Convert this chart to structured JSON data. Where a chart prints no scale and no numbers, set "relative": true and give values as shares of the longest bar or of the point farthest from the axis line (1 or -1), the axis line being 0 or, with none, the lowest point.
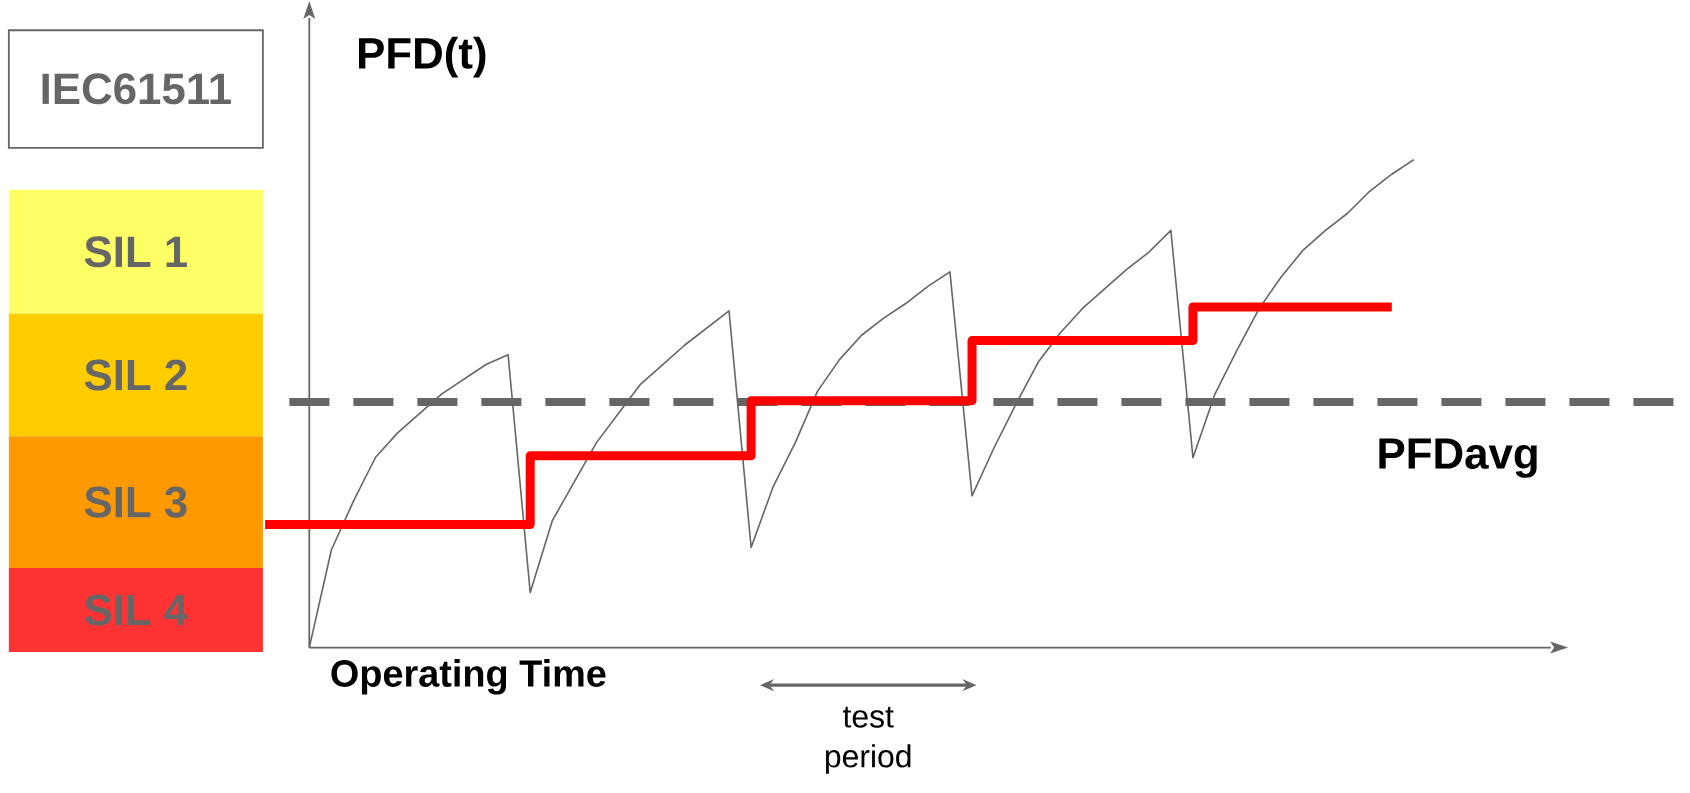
{
  "chart_data": {
    "type": "line",
    "relative": true,
    "ylabel": "PFD(t)",
    "xlabel": "Operating Time",
    "annotations": [
      "IEC61511",
      "SIL 1",
      "SIL 2",
      "SIL 3",
      "SIL 4",
      "test period"
    ],
    "categories": [
      null,
      null,
      null,
      null,
      null,
      null,
      null,
      null,
      null,
      null,
      null,
      null,
      null,
      null,
      null,
      null,
      null,
      null,
      null,
      null,
      null,
      null,
      null,
      null,
      null,
      null,
      null,
      null,
      null,
      null,
      null,
      null,
      null,
      null,
      null,
      null,
      null,
      null,
      null,
      null,
      null,
      null,
      null,
      null,
      null,
      null,
      null,
      null,
      null,
      null,
      null,
      null,
      null
    ],
    "series": [
      {
        "color": "#666666",
        "values": [
          null,
          null,
          0,
          0.2,
          0.3,
          0.39,
          0.44,
          0.48,
          0.52,
          0.55,
          0.58,
          0.6,
          0.113,
          0.26,
          0.34,
          0.42,
          0.48,
          0.54,
          0.58,
          0.62,
          0.655,
          0.69,
          0.205,
          0.33,
          0.42,
          0.525,
          0.59,
          0.64,
          0.675,
          0.705,
          0.74,
          0.77,
          0.311,
          0.41,
          0.5,
          0.585,
          0.645,
          0.695,
          0.735,
          0.775,
          0.81,
          0.855,
          0.389,
          0.52,
          0.61,
          0.695,
          0.76,
          0.815,
          0.855,
          0.89,
          0.935,
          0.97,
          1.0
        ]
      },
      {
        "type": "step",
        "color": "#ff0000",
        "values": [
          0.252,
          0.252,
          0.252,
          0.252,
          0.252,
          0.252,
          0.252,
          0.252,
          0.252,
          0.252,
          0.252,
          0.252,
          0.393,
          0.393,
          0.393,
          0.393,
          0.393,
          0.393,
          0.393,
          0.393,
          0.393,
          0.393,
          0.506,
          0.506,
          0.506,
          0.506,
          0.506,
          0.506,
          0.506,
          0.506,
          0.506,
          0.506,
          0.629,
          0.629,
          0.629,
          0.629,
          0.629,
          0.629,
          0.629,
          0.629,
          0.629,
          0.629,
          0.698,
          0.698,
          0.698,
          0.698,
          0.698,
          0.698,
          0.698,
          0.698,
          0.698,
          0.698,
          null
        ]
      }
    ],
    "ref_lines": [
      {
        "axis": "y",
        "value": 0.503,
        "label": "PFDavg",
        "color": "#666666",
        "line_style": "dashed"
      }
    ]
  }
}
